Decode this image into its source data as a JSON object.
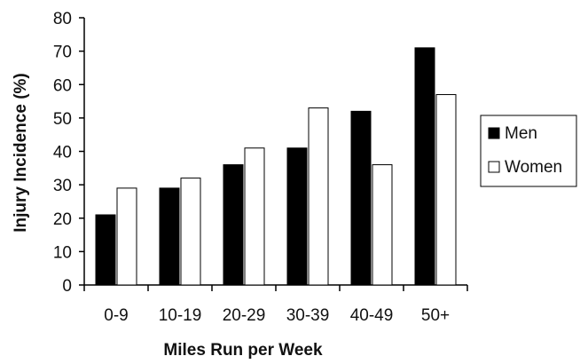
{
  "chart_data": {
    "type": "bar",
    "xlabel": "Miles Run per Week",
    "ylabel": "Injury Incidence (%)",
    "categories": [
      "0-9",
      "10-19",
      "20-29",
      "30-39",
      "40-49",
      "50+"
    ],
    "series": [
      {
        "name": "Men",
        "values": [
          21,
          29,
          36,
          41,
          52,
          71
        ],
        "color": "#000000"
      },
      {
        "name": "Women",
        "values": [
          29,
          32,
          41,
          53,
          36,
          57
        ],
        "color": "#ffffff"
      }
    ],
    "ylim": [
      0,
      80
    ],
    "yticks": [
      0,
      10,
      20,
      30,
      40,
      50,
      60,
      70,
      80
    ],
    "grid": false,
    "legend_position": "right"
  }
}
